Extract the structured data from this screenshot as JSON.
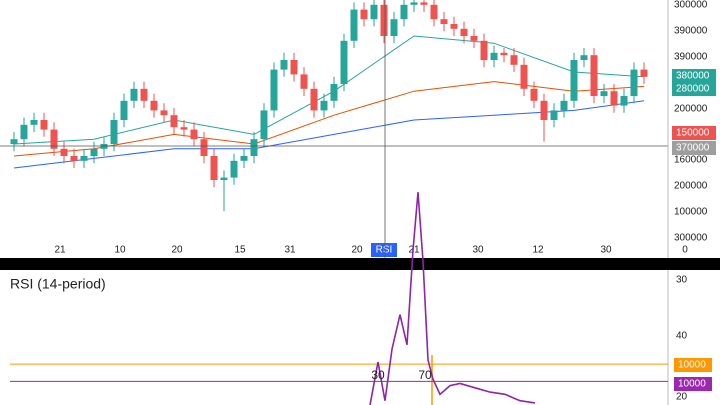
{
  "chart_data": [
    {
      "type": "candlestick",
      "xlim": [
        -0.4,
        64.1
      ],
      "ylim": [
        0,
        100
      ],
      "open": [
        40,
        42,
        48,
        50,
        46,
        38,
        35,
        33,
        35,
        38,
        40,
        50,
        58,
        63,
        58,
        54,
        52,
        47,
        46,
        42,
        35,
        25,
        26,
        33,
        35,
        42,
        54,
        71,
        75,
        69,
        63,
        54,
        58,
        65,
        83,
        96,
        92,
        98,
        85,
        92,
        98,
        99,
        98,
        92,
        90,
        88,
        85,
        83,
        75,
        78,
        77,
        73,
        63,
        58,
        50,
        54,
        58,
        75,
        77,
        60,
        62,
        56,
        60,
        71
      ],
      "high": [
        45,
        51,
        53,
        53,
        49,
        41,
        38,
        38,
        41,
        43,
        53,
        61,
        66,
        66,
        61,
        57,
        55,
        50,
        49,
        45,
        38,
        29,
        36,
        38,
        45,
        57,
        74,
        78,
        78,
        72,
        66,
        61,
        68,
        86,
        99,
        99,
        100,
        100,
        95,
        100,
        100,
        100,
        100,
        95,
        93,
        91,
        88,
        86,
        81,
        80,
        80,
        76,
        66,
        61,
        57,
        61,
        78,
        80,
        80,
        65,
        65,
        63,
        74,
        74
      ],
      "low": [
        37,
        39,
        45,
        43,
        35,
        32,
        30,
        30,
        32,
        35,
        37,
        47,
        55,
        55,
        51,
        49,
        44,
        43,
        39,
        32,
        22,
        12,
        23,
        30,
        32,
        39,
        51,
        68,
        66,
        60,
        51,
        51,
        55,
        62,
        80,
        89,
        89,
        82,
        82,
        89,
        95,
        95,
        89,
        87,
        85,
        82,
        80,
        72,
        72,
        74,
        70,
        60,
        55,
        41,
        47,
        51,
        55,
        72,
        57,
        57,
        53,
        53,
        57,
        65
      ],
      "close": [
        42,
        48,
        50,
        46,
        38,
        35,
        33,
        35,
        38,
        40,
        50,
        58,
        63,
        58,
        54,
        52,
        47,
        46,
        42,
        35,
        25,
        26,
        33,
        35,
        42,
        54,
        71,
        75,
        69,
        63,
        54,
        58,
        65,
        83,
        96,
        92,
        98,
        85,
        92,
        98,
        99,
        98,
        92,
        90,
        88,
        85,
        83,
        75,
        78,
        77,
        73,
        63,
        58,
        50,
        54,
        58,
        75,
        77,
        60,
        62,
        56,
        60,
        71,
        68
      ],
      "up_color": "#26a69a",
      "down_color": "#ef5350",
      "moving_averages": [
        {
          "color": "#2962ff",
          "x": [
            0,
            8,
            16,
            24,
            32,
            40,
            48,
            56,
            63
          ],
          "values": [
            30,
            34,
            38,
            38,
            44,
            50,
            52,
            54,
            58
          ]
        },
        {
          "color": "#e65100",
          "x": [
            0,
            8,
            16,
            24,
            32,
            40,
            48,
            56,
            63
          ],
          "values": [
            35,
            38,
            44,
            40,
            52,
            62,
            66,
            62,
            64
          ]
        },
        {
          "color": "#26a69a",
          "x": [
            0,
            8,
            16,
            24,
            32,
            40,
            48,
            56,
            63
          ],
          "values": [
            40,
            42,
            50,
            44,
            62,
            85,
            82,
            70,
            68
          ]
        }
      ],
      "axis_labels": [
        "300000",
        "390000",
        "390000",
        {
          "label": "380000",
          "background": "#26a69a"
        },
        {
          "label": "280000",
          "background": "#26a69a"
        },
        "200000",
        {
          "label": "150000",
          "background": "#ef5350"
        },
        {
          "label": "370000",
          "background": "#9e9e9e"
        },
        "160000",
        "200000",
        "100000",
        "300000"
      ],
      "time_labels": [
        "21",
        "10",
        "20",
        "15",
        "31",
        "20",
        {
          "label": "RSI",
          "background": "#2962ff"
        },
        "21",
        "30",
        "12",
        "30",
        "0"
      ]
    },
    {
      "type": "line",
      "title": "RSI (14-period)",
      "xlim": [
        -0.4,
        64.1
      ],
      "ylim": [
        0,
        100
      ],
      "color": "#8e24aa",
      "x": [
        35.6,
        36.4,
        37.1,
        37.8,
        38.6,
        39.3,
        39.9,
        40.4,
        40.9,
        41.4,
        41.9,
        42.6,
        43.6,
        44.6,
        46.1,
        47.6,
        49.1,
        50.6,
        52.1
      ],
      "values": [
        0,
        20,
        2,
        26,
        42,
        28,
        72,
        99,
        67,
        21,
        12,
        5,
        9,
        10,
        8,
        6,
        5,
        2,
        1
      ],
      "levels": [
        {
          "value": 19,
          "color": "#ff9800"
        },
        {
          "value": 11,
          "color": "#9c27b0"
        }
      ],
      "axis_labels": [
        "30",
        "40",
        {
          "label": "10000",
          "background": "#ff9800"
        },
        {
          "label": "10000",
          "background": "#9c27b0"
        },
        "20"
      ],
      "annotations": [
        "30",
        "70"
      ]
    }
  ]
}
